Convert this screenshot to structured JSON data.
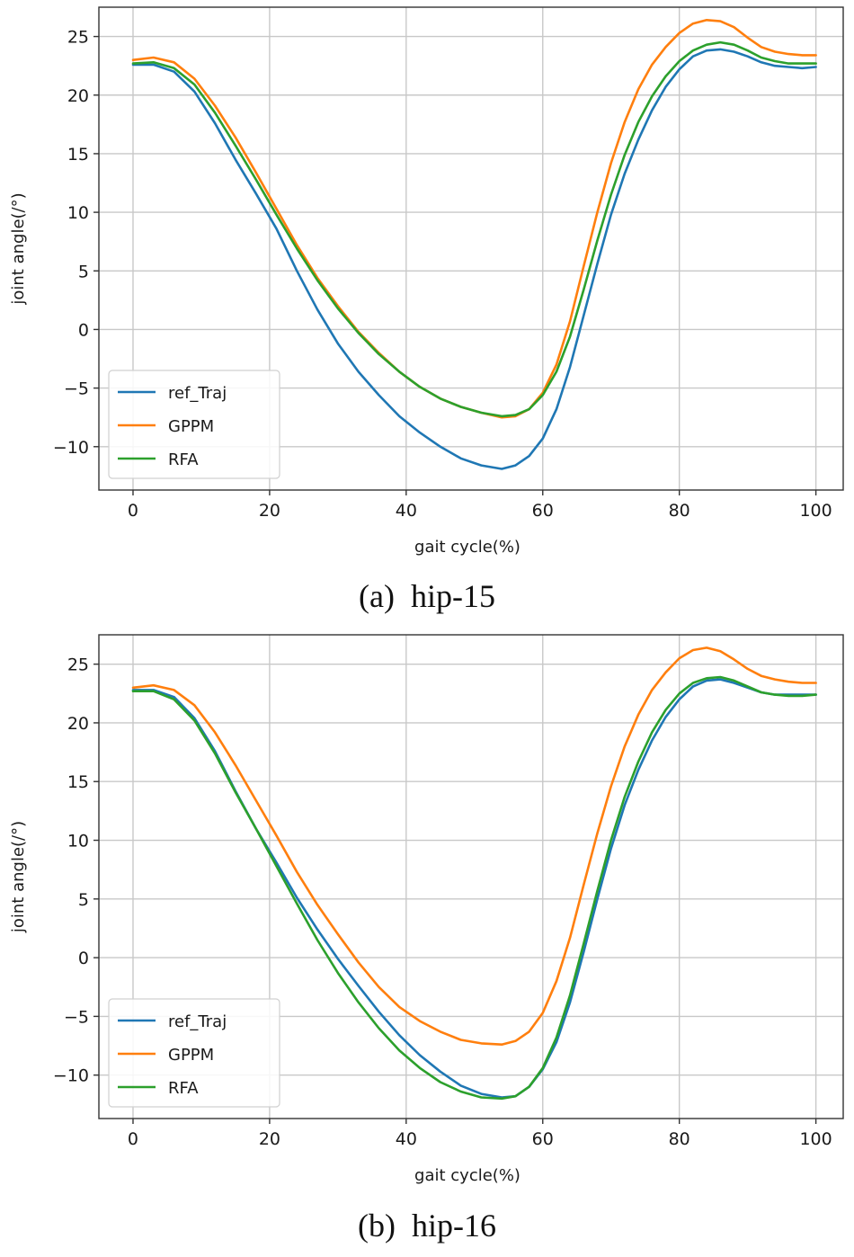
{
  "colors": {
    "ref_Traj": "#1f77b4",
    "GPPM": "#ff7f0e",
    "RFA": "#2ca02c"
  },
  "chart_data": [
    {
      "type": "line",
      "caption": "(a)  hip-15",
      "xlabel": "gait cycle(%)",
      "ylabel": "joint angle(/°)",
      "xlim": [
        -5,
        104
      ],
      "ylim": [
        -13.7,
        27.5
      ],
      "xticks": [
        0,
        20,
        40,
        60,
        80,
        100
      ],
      "yticks": [
        -10,
        -5,
        0,
        5,
        10,
        15,
        20,
        25
      ],
      "ytick_labels": [
        "−10",
        "−5",
        "0",
        "5",
        "10",
        "15",
        "20",
        "25"
      ],
      "grid": true,
      "legend_position": "lower-left",
      "series": [
        {
          "name": "ref_Traj",
          "color_key": "ref_Traj",
          "x": [
            0,
            3,
            6,
            9,
            12,
            15,
            18,
            21,
            24,
            27,
            30,
            33,
            36,
            39,
            42,
            45,
            48,
            51,
            54,
            56,
            58,
            60,
            62,
            64,
            66,
            68,
            70,
            72,
            74,
            76,
            78,
            80,
            82,
            84,
            86,
            88,
            90,
            92,
            94,
            96,
            98,
            100
          ],
          "y": [
            22.6,
            22.6,
            22.0,
            20.3,
            17.6,
            14.5,
            11.6,
            8.6,
            5.0,
            1.7,
            -1.2,
            -3.6,
            -5.6,
            -7.4,
            -8.8,
            -10.0,
            -11.0,
            -11.6,
            -11.9,
            -11.6,
            -10.8,
            -9.3,
            -6.8,
            -3.2,
            1.2,
            5.6,
            9.8,
            13.3,
            16.2,
            18.7,
            20.7,
            22.2,
            23.3,
            23.8,
            23.9,
            23.7,
            23.3,
            22.8,
            22.5,
            22.4,
            22.3,
            22.4
          ]
        },
        {
          "name": "GPPM",
          "color_key": "GPPM",
          "x": [
            0,
            3,
            6,
            9,
            12,
            15,
            18,
            21,
            24,
            27,
            30,
            33,
            36,
            39,
            42,
            45,
            48,
            51,
            54,
            56,
            58,
            60,
            62,
            64,
            66,
            68,
            70,
            72,
            74,
            76,
            78,
            80,
            82,
            84,
            86,
            88,
            90,
            92,
            94,
            96,
            98,
            100
          ],
          "y": [
            23.0,
            23.2,
            22.8,
            21.4,
            19.1,
            16.4,
            13.4,
            10.3,
            7.2,
            4.4,
            2.0,
            -0.2,
            -2.0,
            -3.6,
            -4.9,
            -5.9,
            -6.6,
            -7.1,
            -7.5,
            -7.4,
            -6.8,
            -5.4,
            -3.0,
            0.7,
            5.4,
            10.0,
            14.2,
            17.7,
            20.5,
            22.6,
            24.1,
            25.3,
            26.1,
            26.4,
            26.3,
            25.8,
            24.9,
            24.1,
            23.7,
            23.5,
            23.4,
            23.4
          ]
        },
        {
          "name": "RFA",
          "color_key": "RFA",
          "x": [
            0,
            3,
            6,
            9,
            12,
            15,
            18,
            21,
            24,
            27,
            30,
            33,
            36,
            39,
            42,
            45,
            48,
            51,
            54,
            56,
            58,
            60,
            62,
            64,
            66,
            68,
            70,
            72,
            74,
            76,
            78,
            80,
            82,
            84,
            86,
            88,
            90,
            92,
            94,
            96,
            98,
            100
          ],
          "y": [
            22.7,
            22.8,
            22.3,
            20.9,
            18.5,
            15.7,
            12.8,
            9.8,
            6.9,
            4.2,
            1.8,
            -0.3,
            -2.1,
            -3.6,
            -4.9,
            -5.9,
            -6.6,
            -7.1,
            -7.4,
            -7.3,
            -6.8,
            -5.6,
            -3.6,
            -0.6,
            3.4,
            7.6,
            11.5,
            14.9,
            17.7,
            19.9,
            21.6,
            22.9,
            23.8,
            24.3,
            24.5,
            24.3,
            23.8,
            23.2,
            22.9,
            22.7,
            22.7,
            22.7
          ]
        }
      ]
    },
    {
      "type": "line",
      "caption": "(b)  hip-16",
      "xlabel": "gait cycle(%)",
      "ylabel": "joint angle(/°)",
      "xlim": [
        -5,
        104
      ],
      "ylim": [
        -13.7,
        27.5
      ],
      "xticks": [
        0,
        20,
        40,
        60,
        80,
        100
      ],
      "yticks": [
        -10,
        -5,
        0,
        5,
        10,
        15,
        20,
        25
      ],
      "ytick_labels": [
        "−10",
        "−5",
        "0",
        "5",
        "10",
        "15",
        "20",
        "25"
      ],
      "grid": true,
      "legend_position": "lower-left",
      "series": [
        {
          "name": "ref_Traj",
          "color_key": "ref_Traj",
          "x": [
            0,
            3,
            6,
            9,
            12,
            15,
            18,
            21,
            24,
            27,
            30,
            33,
            36,
            39,
            42,
            45,
            48,
            51,
            54,
            56,
            58,
            60,
            62,
            64,
            66,
            68,
            70,
            72,
            74,
            76,
            78,
            80,
            82,
            84,
            86,
            88,
            90,
            92,
            94,
            96,
            98,
            100
          ],
          "y": [
            22.8,
            22.8,
            22.2,
            20.4,
            17.6,
            14.2,
            11.0,
            8.1,
            5.1,
            2.4,
            -0.1,
            -2.4,
            -4.6,
            -6.6,
            -8.3,
            -9.7,
            -10.9,
            -11.6,
            -11.9,
            -11.8,
            -11.0,
            -9.5,
            -7.2,
            -3.8,
            0.5,
            5.0,
            9.3,
            13.0,
            16.0,
            18.5,
            20.5,
            22.0,
            23.1,
            23.6,
            23.7,
            23.4,
            23.0,
            22.6,
            22.4,
            22.4,
            22.4,
            22.4
          ]
        },
        {
          "name": "GPPM",
          "color_key": "GPPM",
          "x": [
            0,
            3,
            6,
            9,
            12,
            15,
            18,
            21,
            24,
            27,
            30,
            33,
            36,
            39,
            42,
            45,
            48,
            51,
            54,
            56,
            58,
            60,
            62,
            64,
            66,
            68,
            70,
            72,
            74,
            76,
            78,
            80,
            82,
            84,
            86,
            88,
            90,
            92,
            94,
            96,
            98,
            100
          ],
          "y": [
            23.0,
            23.2,
            22.8,
            21.5,
            19.2,
            16.4,
            13.4,
            10.4,
            7.3,
            4.5,
            2.0,
            -0.4,
            -2.5,
            -4.2,
            -5.4,
            -6.3,
            -7.0,
            -7.3,
            -7.4,
            -7.1,
            -6.3,
            -4.7,
            -2.0,
            1.7,
            6.2,
            10.6,
            14.6,
            18.0,
            20.7,
            22.8,
            24.3,
            25.5,
            26.2,
            26.4,
            26.1,
            25.4,
            24.6,
            24.0,
            23.7,
            23.5,
            23.4,
            23.4
          ]
        },
        {
          "name": "RFA",
          "color_key": "RFA",
          "x": [
            0,
            3,
            6,
            9,
            12,
            15,
            18,
            21,
            24,
            27,
            30,
            33,
            36,
            39,
            42,
            45,
            48,
            51,
            54,
            56,
            58,
            60,
            62,
            64,
            66,
            68,
            70,
            72,
            74,
            76,
            78,
            80,
            82,
            84,
            86,
            88,
            90,
            92,
            94,
            96,
            98,
            100
          ],
          "y": [
            22.7,
            22.7,
            22.0,
            20.2,
            17.4,
            14.1,
            11.0,
            7.8,
            4.6,
            1.5,
            -1.3,
            -3.8,
            -6.0,
            -7.9,
            -9.4,
            -10.6,
            -11.4,
            -11.9,
            -12.0,
            -11.8,
            -11.0,
            -9.4,
            -6.8,
            -3.2,
            1.2,
            5.7,
            10.0,
            13.7,
            16.7,
            19.2,
            21.1,
            22.5,
            23.4,
            23.8,
            23.9,
            23.6,
            23.1,
            22.6,
            22.4,
            22.3,
            22.3,
            22.4
          ]
        }
      ]
    }
  ]
}
